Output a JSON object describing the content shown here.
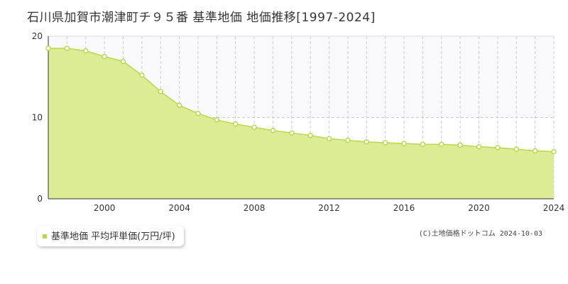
{
  "title": "石川県加賀市潮津町チ９５番 基準地価 地価推移[1997-2024]",
  "copyright": "(C)土地価格ドットコム 2024-10-03",
  "legend": {
    "label": "基準地価 平均坪単価(万円/坪)"
  },
  "colors": {
    "fill": "#dcec94",
    "line": "#b9d84a",
    "marker_stroke": "#b9d84a",
    "marker_fill": "#ffffff",
    "grid_dashed": "#cccccc",
    "upper_band": "#f9f8fb",
    "legend_swatch": "#b9d84a"
  },
  "chart_data": {
    "type": "area",
    "x": [
      1997,
      1998,
      1999,
      2000,
      2001,
      2002,
      2003,
      2004,
      2005,
      2006,
      2007,
      2008,
      2009,
      2010,
      2011,
      2012,
      2013,
      2014,
      2015,
      2016,
      2017,
      2018,
      2019,
      2020,
      2021,
      2022,
      2023,
      2024
    ],
    "series": [
      {
        "name": "基準地価 平均坪単価(万円/坪)",
        "values": [
          18.5,
          18.5,
          18.2,
          17.5,
          16.9,
          15.2,
          13.2,
          11.5,
          10.5,
          9.7,
          9.2,
          8.8,
          8.4,
          8.1,
          7.8,
          7.4,
          7.2,
          7.0,
          6.9,
          6.8,
          6.7,
          6.7,
          6.6,
          6.4,
          6.3,
          6.1,
          5.9,
          5.8
        ]
      }
    ],
    "x_ticks": [
      "2000",
      "2004",
      "2008",
      "2012",
      "2016",
      "2020",
      "2024"
    ],
    "y_ticks": [
      "0",
      "10",
      "20"
    ],
    "xlim": [
      1997,
      2024
    ],
    "ylim": [
      0,
      20
    ],
    "grid": true,
    "legend_position": "bottom-left"
  }
}
